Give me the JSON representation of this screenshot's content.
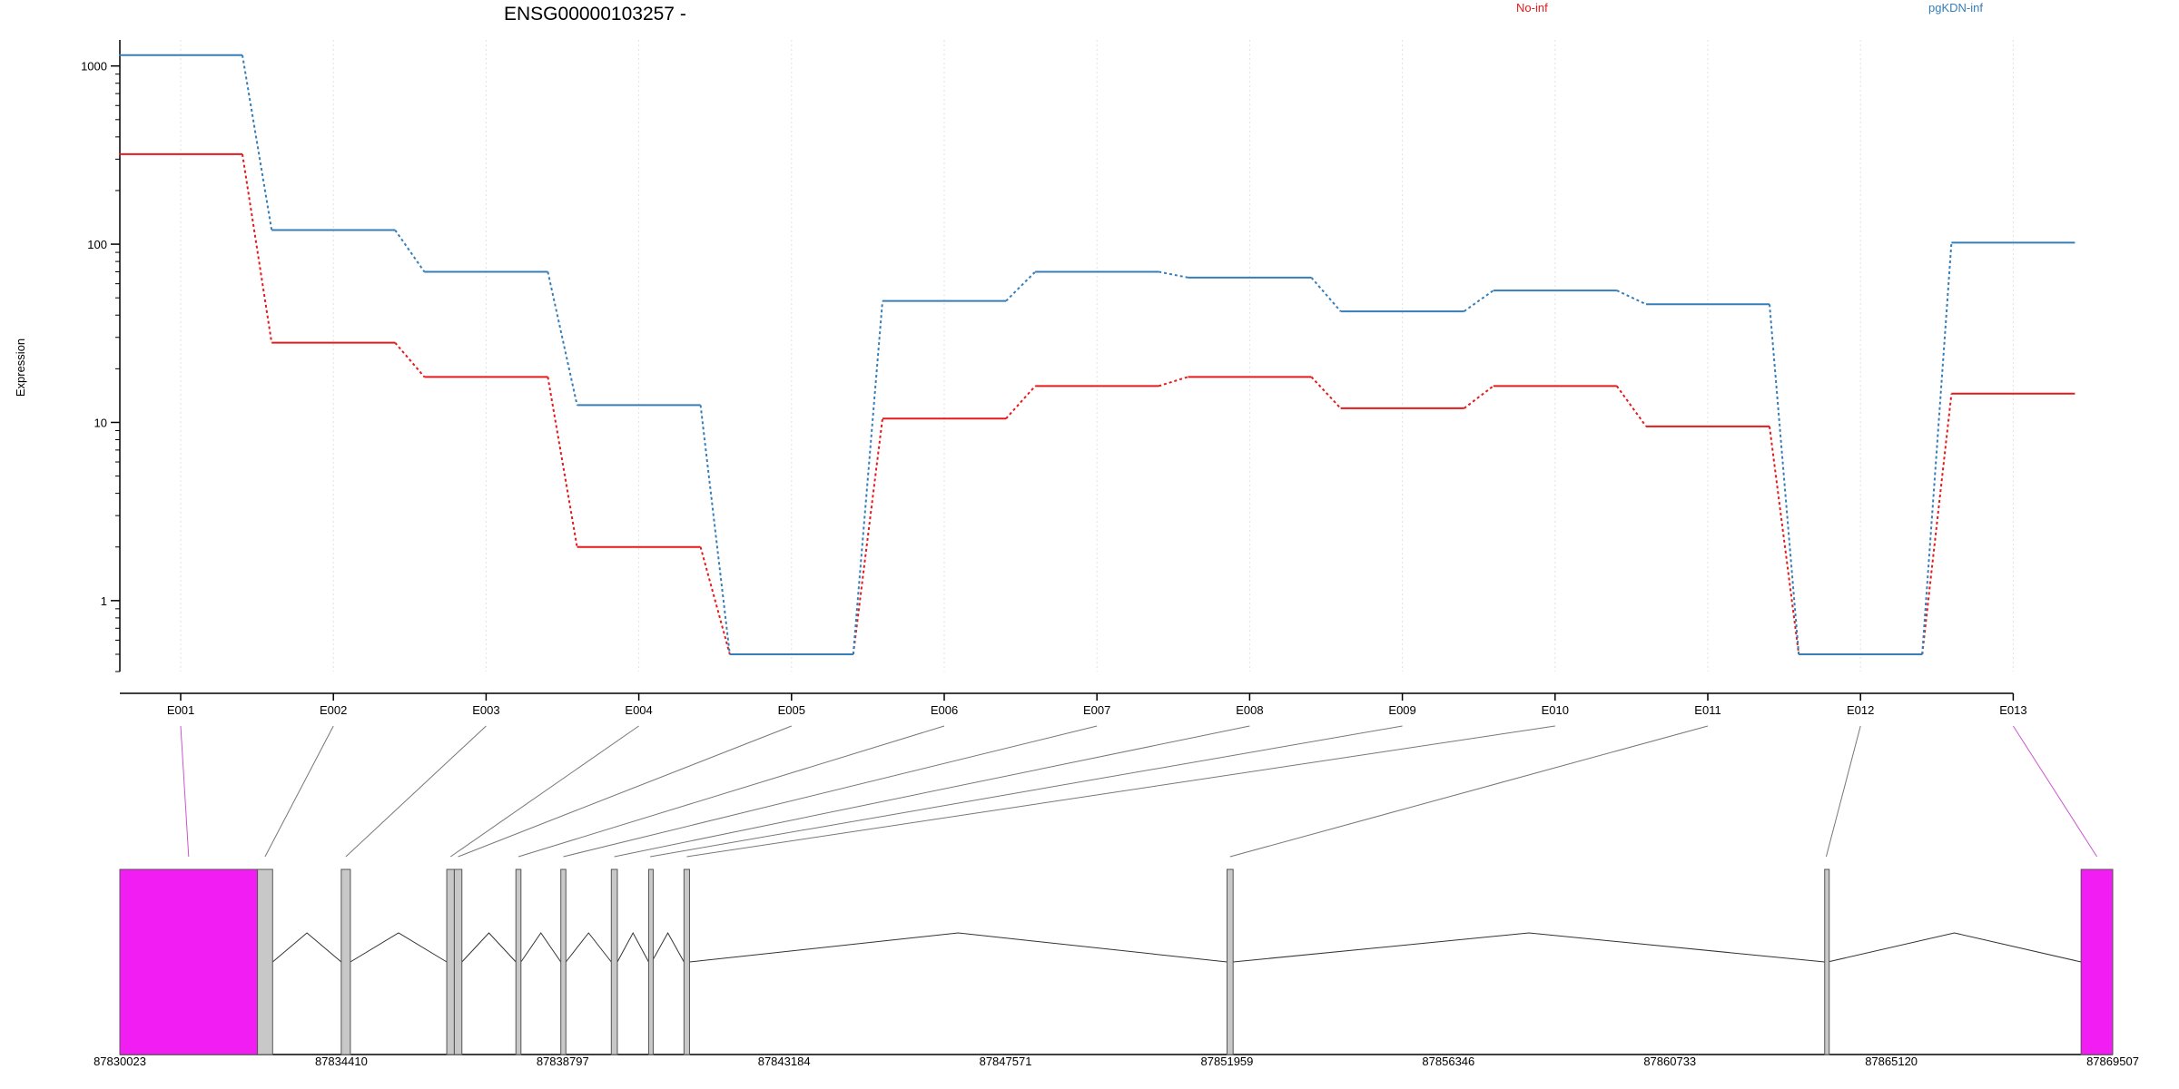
{
  "chart_data": {
    "type": "line",
    "title": "ENSG00000103257 -",
    "ylabel": "Expression",
    "xlabel": "",
    "yscale": "log",
    "ylim": [
      0.4,
      1400
    ],
    "yticks": [
      1,
      10,
      100,
      1000
    ],
    "ytick_labels": [
      "1",
      "10",
      "100",
      "1000"
    ],
    "categories": [
      "E001",
      "E002",
      "E003",
      "E004",
      "E005",
      "E006",
      "E007",
      "E008",
      "E009",
      "E010",
      "E011",
      "E012",
      "E013"
    ],
    "grid": "vertical dotted at exon bins",
    "legend_position": "top",
    "series": [
      {
        "name": "No-inf",
        "color": "#e41a1c",
        "values": [
          320,
          28,
          18,
          2.0,
          0.5,
          10.5,
          16,
          18,
          12,
          16,
          9.5,
          0.5,
          14.5
        ]
      },
      {
        "name": "pgKDN-inf",
        "color": "#377eb8",
        "values": [
          1150,
          120,
          70,
          12.5,
          0.5,
          48,
          70,
          65,
          42,
          55,
          46,
          0.5,
          102
        ]
      }
    ],
    "gene_model": {
      "coordinate_ticks": [
        "87830023",
        "87834410",
        "87838797",
        "87843184",
        "87847571",
        "87851959",
        "87856346",
        "87860733",
        "87865120",
        "87869507"
      ],
      "exon_fill": "#c8c8c8",
      "highlight_fill": "#f21df2",
      "exons": [
        {
          "id": "E001",
          "start": 87830023,
          "end": 87832750,
          "highlight": true,
          "link": "#cc55cc"
        },
        {
          "id": "E002",
          "start": 87832750,
          "end": 87833050,
          "highlight": false,
          "link": "#777777"
        },
        {
          "id": "E003",
          "start": 87834410,
          "end": 87834590,
          "highlight": false,
          "link": "#777777"
        },
        {
          "id": "E004",
          "start": 87836500,
          "end": 87836650,
          "highlight": false,
          "link": "#777777"
        },
        {
          "id": "E005",
          "start": 87836650,
          "end": 87836800,
          "highlight": false,
          "link": "#777777"
        },
        {
          "id": "E006",
          "start": 87837870,
          "end": 87837970,
          "highlight": false,
          "link": "#777777"
        },
        {
          "id": "E007",
          "start": 87838760,
          "end": 87838860,
          "highlight": false,
          "link": "#777777"
        },
        {
          "id": "E008",
          "start": 87839760,
          "end": 87839880,
          "highlight": false,
          "link": "#777777"
        },
        {
          "id": "E009",
          "start": 87840500,
          "end": 87840560,
          "highlight": false,
          "link": "#777777"
        },
        {
          "id": "E010",
          "start": 87841200,
          "end": 87841310,
          "highlight": false,
          "link": "#777777"
        },
        {
          "id": "E011",
          "start": 87851959,
          "end": 87852080,
          "highlight": false,
          "link": "#777777"
        },
        {
          "id": "E012",
          "start": 87863800,
          "end": 87863860,
          "highlight": false,
          "link": "#777777"
        },
        {
          "id": "E013",
          "start": 87868880,
          "end": 87869507,
          "highlight": true,
          "link": "#cc55cc"
        }
      ],
      "introns": [
        [
          87833050,
          87834410
        ],
        [
          87834590,
          87836500
        ],
        [
          87836800,
          87837870
        ],
        [
          87837970,
          87838760
        ],
        [
          87838860,
          87839760
        ],
        [
          87839880,
          87840500
        ],
        [
          87840560,
          87841200
        ],
        [
          87841310,
          87851959
        ],
        [
          87852080,
          87863800
        ],
        [
          87863860,
          87868880
        ]
      ]
    }
  }
}
